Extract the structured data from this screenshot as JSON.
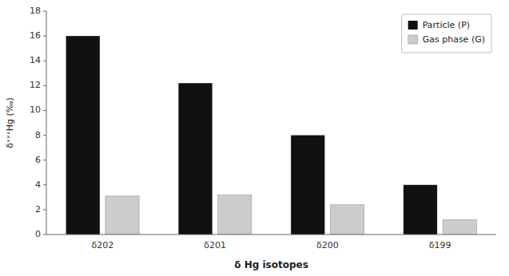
{
  "chart_data": {
    "type": "bar",
    "categories": [
      "δ202",
      "δ201",
      "δ200",
      "δ199"
    ],
    "series": [
      {
        "name": "Particle (P)",
        "color": "#111111",
        "values": [
          16,
          12.2,
          8,
          4
        ]
      },
      {
        "name": "Gas phase (G)",
        "color": "#cccccc",
        "values": [
          3.1,
          3.2,
          2.4,
          1.2
        ]
      }
    ],
    "xlabel": "δ Hg isotopes",
    "ylabel": "δˣˣˣHg (‰)",
    "ylim": [
      0,
      18
    ],
    "yticks": [
      0,
      2,
      4,
      6,
      8,
      10,
      12,
      14,
      16,
      18
    ],
    "legend": "upper right",
    "grid": false
  }
}
